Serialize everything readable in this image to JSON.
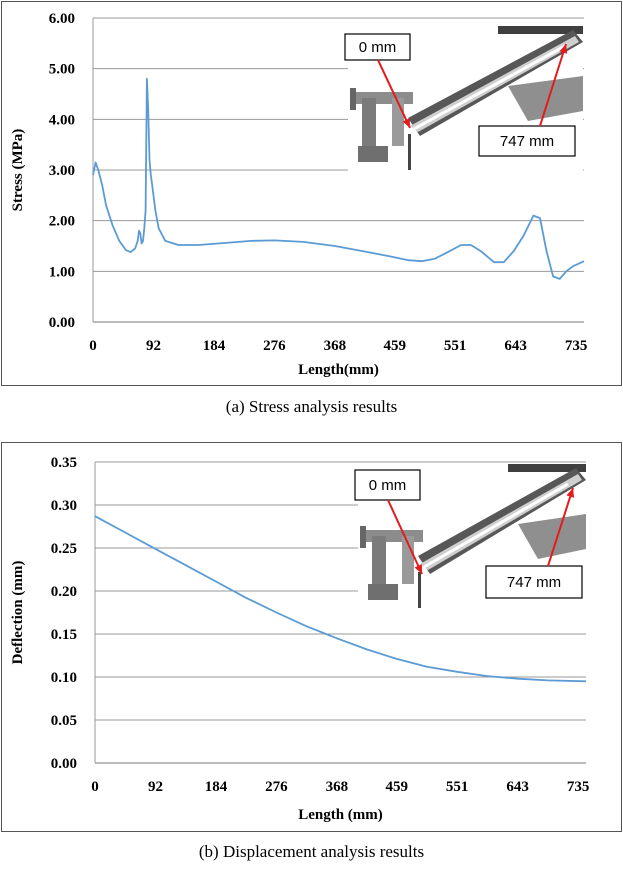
{
  "chart_data": [
    {
      "type": "line",
      "caption": "(a) Stress analysis results",
      "xlabel": "Length(mm)",
      "ylabel": "Stress (MPa)",
      "xlim": [
        0,
        747
      ],
      "ylim": [
        0,
        6
      ],
      "x_ticks": [
        "0",
        "92",
        "184",
        "276",
        "368",
        "459",
        "551",
        "643",
        "735"
      ],
      "x_tick_values": [
        0,
        92,
        184,
        276,
        368,
        459,
        551,
        643,
        735
      ],
      "y_ticks": [
        "0.00",
        "1.00",
        "2.00",
        "3.00",
        "4.00",
        "5.00",
        "6.00"
      ],
      "y_tick_values": [
        0,
        1,
        2,
        3,
        4,
        5,
        6
      ],
      "grid": "horizontal",
      "line_color": "#5b9bd5",
      "series": [
        {
          "x": [
            0,
            4,
            8,
            14,
            20,
            30,
            40,
            50,
            57,
            64,
            68,
            70,
            72,
            74,
            76,
            78,
            80,
            82,
            84,
            86,
            88,
            90,
            95,
            100,
            110,
            130,
            160,
            200,
            240,
            276,
            320,
            368,
            410,
            450,
            480,
            500,
            520,
            540,
            560,
            575,
            590,
            610,
            625,
            640,
            655,
            670,
            680,
            690,
            700,
            710,
            720,
            730,
            747
          ],
          "y": [
            2.9,
            3.15,
            3.0,
            2.7,
            2.3,
            1.9,
            1.6,
            1.42,
            1.38,
            1.45,
            1.6,
            1.8,
            1.75,
            1.55,
            1.6,
            1.85,
            2.2,
            4.8,
            4.2,
            3.2,
            2.9,
            2.7,
            2.2,
            1.85,
            1.6,
            1.52,
            1.52,
            1.56,
            1.6,
            1.61,
            1.58,
            1.5,
            1.4,
            1.3,
            1.22,
            1.2,
            1.25,
            1.38,
            1.52,
            1.52,
            1.4,
            1.18,
            1.18,
            1.4,
            1.7,
            2.1,
            2.05,
            1.4,
            0.9,
            0.85,
            1.0,
            1.1,
            1.2
          ]
        }
      ],
      "inset": {
        "label_start": "0 mm",
        "label_end": "747 mm"
      }
    },
    {
      "type": "line",
      "caption": "(b) Displacement analysis results",
      "xlabel": "Length (mm)",
      "ylabel": "Deflection (mm)",
      "xlim": [
        0,
        747
      ],
      "ylim": [
        0,
        0.35
      ],
      "x_ticks": [
        "0",
        "92",
        "184",
        "276",
        "368",
        "459",
        "551",
        "643",
        "735"
      ],
      "x_tick_values": [
        0,
        92,
        184,
        276,
        368,
        459,
        551,
        643,
        735
      ],
      "y_ticks": [
        "0.00",
        "0.05",
        "0.10",
        "0.15",
        "0.20",
        "0.25",
        "0.30",
        "0.35"
      ],
      "y_tick_values": [
        0,
        0.05,
        0.1,
        0.15,
        0.2,
        0.25,
        0.3,
        0.35
      ],
      "grid": "horizontal",
      "line_color": "#5b9bd5",
      "series": [
        {
          "x": [
            0,
            46,
            92,
            138,
            184,
            230,
            276,
            322,
            368,
            414,
            459,
            505,
            551,
            597,
            643,
            689,
            747
          ],
          "y": [
            0.287,
            0.268,
            0.249,
            0.23,
            0.211,
            0.192,
            0.175,
            0.159,
            0.145,
            0.132,
            0.121,
            0.112,
            0.106,
            0.101,
            0.098,
            0.096,
            0.095
          ]
        }
      ],
      "inset": {
        "label_start": "0 mm",
        "label_end": "747 mm"
      }
    }
  ]
}
